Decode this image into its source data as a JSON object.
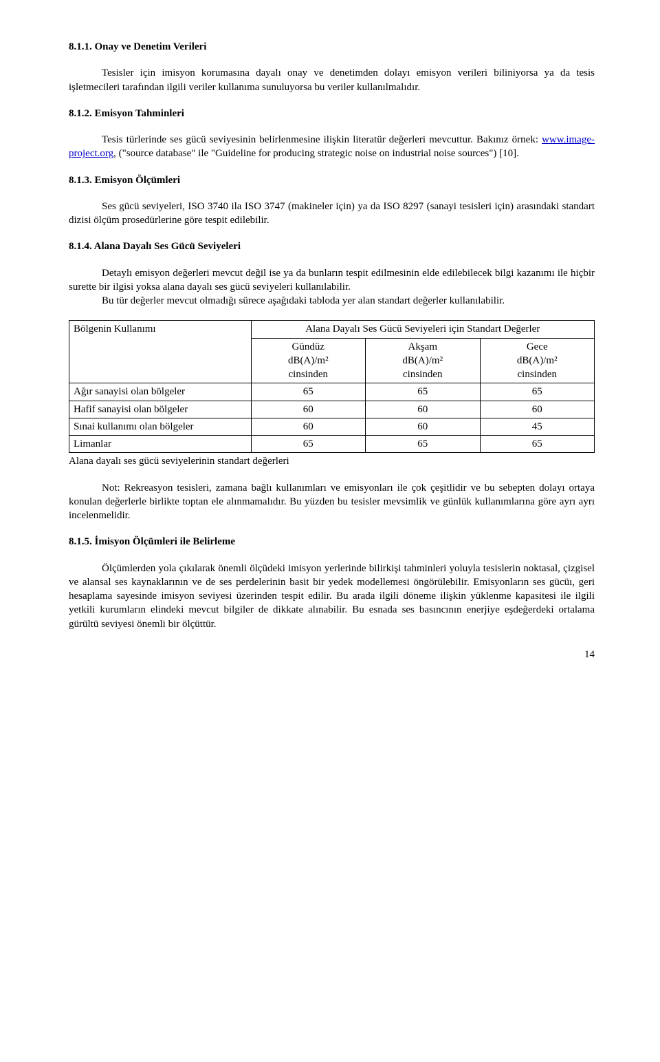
{
  "s811": {
    "heading": "8.1.1. Onay ve Denetim Verileri",
    "p1": "Tesisler için imisyon korumasına dayalı onay ve denetimden dolayı emisyon verileri biliniyorsa ya da tesis işletmecileri tarafından ilgili veriler kullanıma sunuluyorsa bu veriler kullanılmalıdır."
  },
  "s812": {
    "heading": "8.1.2. Emisyon Tahminleri",
    "p1_a": "Tesis türlerinde ses gücü seviyesinin belirlenmesine ilişkin literatür değerleri mevcuttur. Bakınız örnek: ",
    "p1_link": "www.image-project.org",
    "p1_b": ", (\"source database\" ile \"Guideline for producing strategic noise on industrial noise sources\") [10]."
  },
  "s813": {
    "heading": "8.1.3. Emisyon Ölçümleri",
    "p1": "Ses gücü seviyeleri, ISO 3740 ila ISO 3747 (makineler için) ya da ISO 8297 (sanayi tesisleri için) arasındaki standart dizisi ölçüm prosedürlerine göre tespit edilebilir."
  },
  "s814": {
    "heading": "8.1.4. Alana Dayalı Ses Gücü Seviyeleri",
    "p1": "Detaylı emisyon değerleri mevcut değil ise ya da bunların tespit edilmesinin elde edilebilecek bilgi kazanımı ile hiçbir surette bir ilgisi yoksa alana dayalı ses gücü seviyeleri kullanılabilir.",
    "p2": "Bu tür değerler mevcut olmadığı sürece aşağıdaki tabloda yer alan standart değerler kullanılabilir."
  },
  "table": {
    "col1_header": "Bölgenin Kullanımı",
    "col_span_header": "Alana Dayalı Ses Gücü Seviyeleri için Standart Değerler",
    "sub1_a": "Gündüz",
    "sub1_b": "dB(A)/m²",
    "sub1_c": "cinsinden",
    "sub2_a": "Akşam",
    "sub2_b": "dB(A)/m²",
    "sub2_c": "cinsinden",
    "sub3_a": "Gece",
    "sub3_b": "dB(A)/m²",
    "sub3_c": "cinsinden",
    "r1_label": "Ağır sanayisi olan bölgeler",
    "r1_v1": "65",
    "r1_v2": "65",
    "r1_v3": "65",
    "r2_label": "Hafif sanayisi olan bölgeler",
    "r2_v1": "60",
    "r2_v2": "60",
    "r2_v3": "60",
    "r3_label": "Sınai kullanımı olan bölgeler",
    "r3_v1": "60",
    "r3_v2": "60",
    "r3_v3": "45",
    "r4_label": "Limanlar",
    "r4_v1": "65",
    "r4_v2": "65",
    "r4_v3": "65",
    "caption": "Alana dayalı ses gücü seviyelerinin standart değerleri",
    "note": "Not: Rekreasyon tesisleri, zamana bağlı kullanımları ve emisyonları ile çok çeşitlidir ve bu sebepten dolayı ortaya konulan değerlerle birlikte toptan ele alınmamalıdır. Bu yüzden bu tesisler mevsimlik ve günlük kullanımlarına göre ayrı ayrı incelenmelidir."
  },
  "s815": {
    "heading": "8.1.5. İmisyon Ölçümleri ile Belirleme",
    "p1": "Ölçümlerden yola çıkılarak önemli ölçüdeki imisyon yerlerinde bilirkişi tahminleri yoluyla tesislerin noktasal, çizgisel ve alansal ses kaynaklarının ve de ses perdelerinin basit bir yedek modellemesi öngörülebilir. Emisyonların ses gücüı, geri hesaplama sayesinde imisyon seviyesi üzerinden tespit edilir. Bu arada ilgili döneme ilişkin yüklenme kapasitesi ile ilgili yetkili kurumların elindeki mevcut bilgiler de dikkate alınabilir. Bu esnada ses basıncının enerjiye eşdeğerdeki ortalama gürültü seviyesi önemli bir ölçüttür."
  },
  "page_number": "14"
}
